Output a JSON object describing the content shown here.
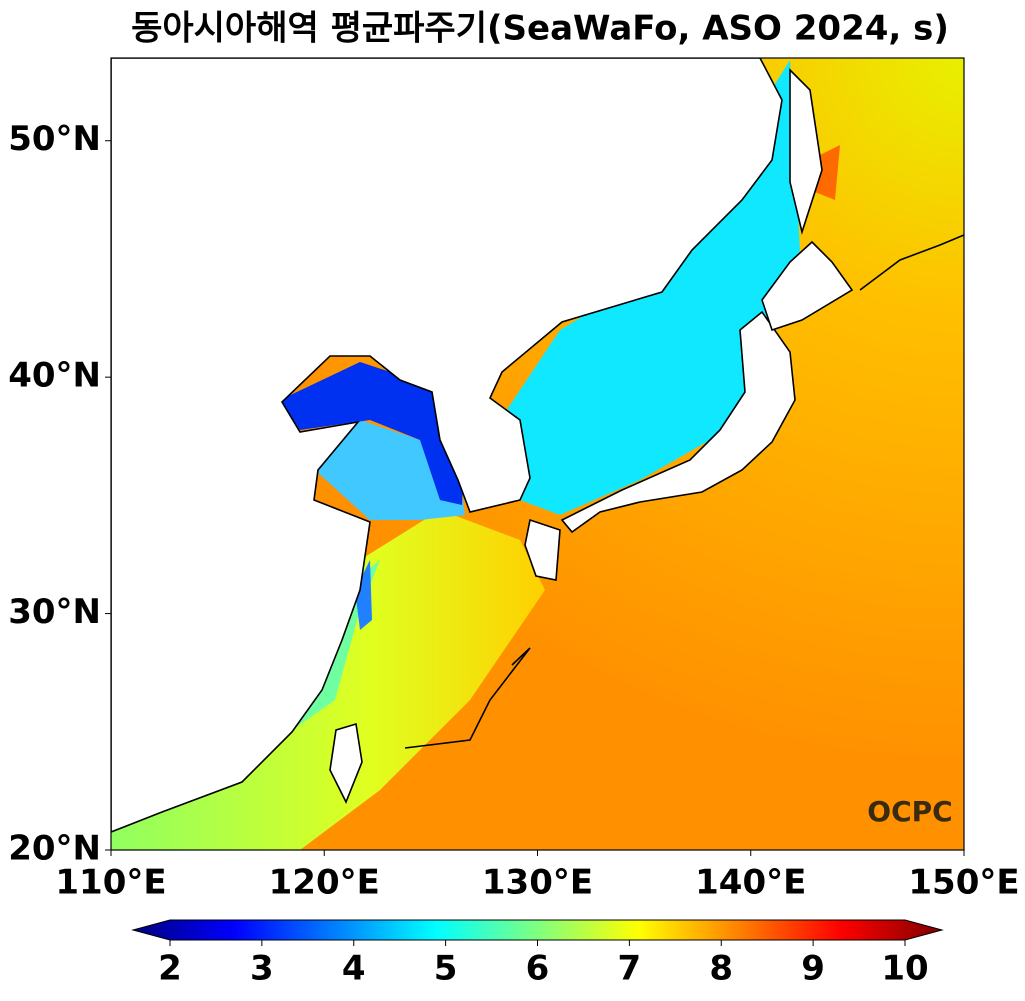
{
  "chart_data": {
    "type": "map",
    "title": "동아시아해역 평균파주기(SeaWaFo, ASO 2024, s)",
    "xlim": [
      110,
      150
    ],
    "ylim": [
      20,
      53.5
    ],
    "xticks": [
      {
        "value": 110,
        "label": "110°E"
      },
      {
        "value": 120,
        "label": "120°E"
      },
      {
        "value": 130,
        "label": "130°E"
      },
      {
        "value": 140,
        "label": "140°E"
      },
      {
        "value": 150,
        "label": "150°E"
      }
    ],
    "yticks": [
      {
        "value": 20,
        "label": "20°N"
      },
      {
        "value": 30,
        "label": "30°N"
      },
      {
        "value": 40,
        "label": "40°N"
      },
      {
        "value": 50,
        "label": "50°N"
      }
    ],
    "colorbar": {
      "lim": [
        2,
        10
      ],
      "ticks": [
        2,
        3,
        4,
        5,
        6,
        7,
        8,
        9,
        10
      ]
    },
    "annotation": "OCPC"
  }
}
